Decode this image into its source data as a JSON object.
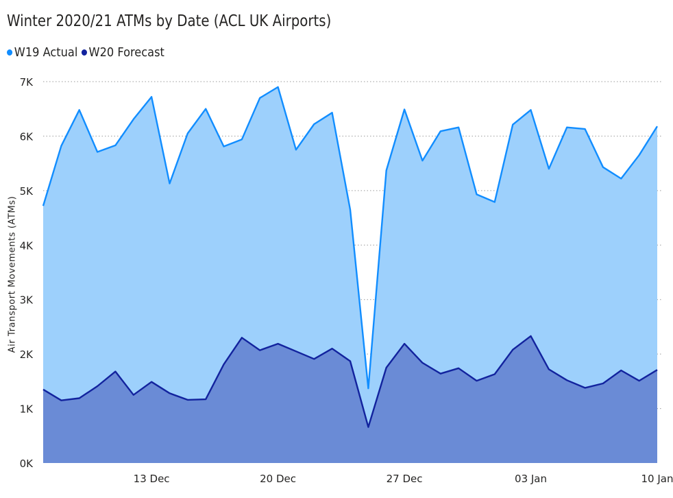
{
  "chart_data": {
    "type": "area",
    "title": "Winter 2020/21 ATMs by Date (ACL UK Airports)",
    "ylabel": "Air Transport Movements (ATMs)",
    "xlabel": "",
    "ylim": [
      0,
      7000
    ],
    "y_ticks": [
      "0K",
      "1K",
      "2K",
      "3K",
      "4K",
      "5K",
      "6K",
      "7K"
    ],
    "y_tick_values": [
      0,
      1000,
      2000,
      3000,
      4000,
      5000,
      6000,
      7000
    ],
    "x": [
      "2020-12-07",
      "2020-12-08",
      "2020-12-09",
      "2020-12-10",
      "2020-12-11",
      "2020-12-12",
      "2020-12-13",
      "2020-12-14",
      "2020-12-15",
      "2020-12-16",
      "2020-12-17",
      "2020-12-18",
      "2020-12-19",
      "2020-12-20",
      "2020-12-21",
      "2020-12-22",
      "2020-12-23",
      "2020-12-24",
      "2020-12-25",
      "2020-12-26",
      "2020-12-27",
      "2020-12-28",
      "2020-12-29",
      "2020-12-30",
      "2020-12-31",
      "2021-01-01",
      "2021-01-02",
      "2021-01-03",
      "2021-01-04",
      "2021-01-05",
      "2021-01-06",
      "2021-01-07",
      "2021-01-08",
      "2021-01-09",
      "2021-01-10"
    ],
    "x_ticks": [
      {
        "label": "13 Dec",
        "date": "2020-12-13"
      },
      {
        "label": "20 Dec",
        "date": "2020-12-20"
      },
      {
        "label": "27 Dec",
        "date": "2020-12-27"
      },
      {
        "label": "03 Jan",
        "date": "2021-01-03"
      },
      {
        "label": "10 Jan",
        "date": "2021-01-10"
      }
    ],
    "series": [
      {
        "name": "W19 Actual",
        "color": "#118DFF",
        "fill": "#9DD0FC",
        "values": [
          4720,
          5820,
          6480,
          5710,
          5830,
          6310,
          6720,
          5130,
          6050,
          6500,
          5810,
          5940,
          6700,
          6900,
          5750,
          6220,
          6430,
          4650,
          1370,
          5370,
          6490,
          5550,
          6090,
          6160,
          4930,
          4790,
          6210,
          6480,
          5400,
          6160,
          6130,
          5430,
          5220,
          5650,
          6180
        ]
      },
      {
        "name": "W20 Forecast",
        "color": "#12239E",
        "fill": "#6A8BD6",
        "values": [
          1350,
          1150,
          1190,
          1410,
          1680,
          1250,
          1490,
          1280,
          1160,
          1170,
          1810,
          2300,
          2070,
          2190,
          2050,
          1910,
          2100,
          1870,
          660,
          1750,
          2190,
          1840,
          1640,
          1740,
          1510,
          1630,
          2080,
          2330,
          1720,
          1520,
          1380,
          1460,
          1700,
          1510,
          1710
        ]
      }
    ],
    "grid": true,
    "legend_position": "top-left"
  }
}
